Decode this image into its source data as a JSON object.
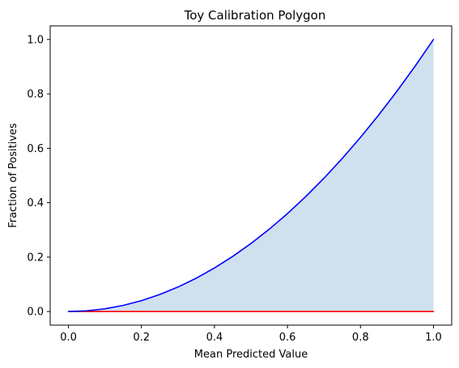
{
  "chart_data": {
    "type": "area",
    "title": "Toy Calibration Polygon",
    "xlabel": "Mean Predicted Value",
    "ylabel": "Fraction of Positives",
    "xlim": [
      -0.05,
      1.05
    ],
    "ylim": [
      -0.05,
      1.05
    ],
    "grid": false,
    "legend": "none",
    "x_ticks": [
      0.0,
      0.2,
      0.4,
      0.6,
      0.8,
      1.0
    ],
    "y_ticks": [
      0.0,
      0.2,
      0.4,
      0.6,
      0.8,
      1.0
    ],
    "x_tick_labels": [
      "0.0",
      "0.2",
      "0.4",
      "0.6",
      "0.8",
      "1.0"
    ],
    "y_tick_labels": [
      "0.0",
      "0.2",
      "0.4",
      "0.6",
      "0.8",
      "1.0"
    ],
    "series": [
      {
        "color": "#0000ff",
        "x": [
          0.0,
          0.05,
          0.1,
          0.15,
          0.2,
          0.25,
          0.3,
          0.35,
          0.4,
          0.45,
          0.5,
          0.55,
          0.6,
          0.65,
          0.7,
          0.75,
          0.8,
          0.85,
          0.9,
          0.95,
          1.0
        ],
        "y": [
          0.0,
          0.0025,
          0.01,
          0.0225,
          0.04,
          0.0625,
          0.09,
          0.1225,
          0.16,
          0.2025,
          0.25,
          0.3025,
          0.36,
          0.4225,
          0.49,
          0.5625,
          0.64,
          0.7225,
          0.81,
          0.9025,
          1.0
        ]
      },
      {
        "color": "#ff0000",
        "x": [
          0.0,
          1.0
        ],
        "y": [
          0.0,
          0.0
        ]
      }
    ],
    "fill": {
      "between": [
        0,
        1
      ],
      "color": "#cfe0ee"
    }
  }
}
